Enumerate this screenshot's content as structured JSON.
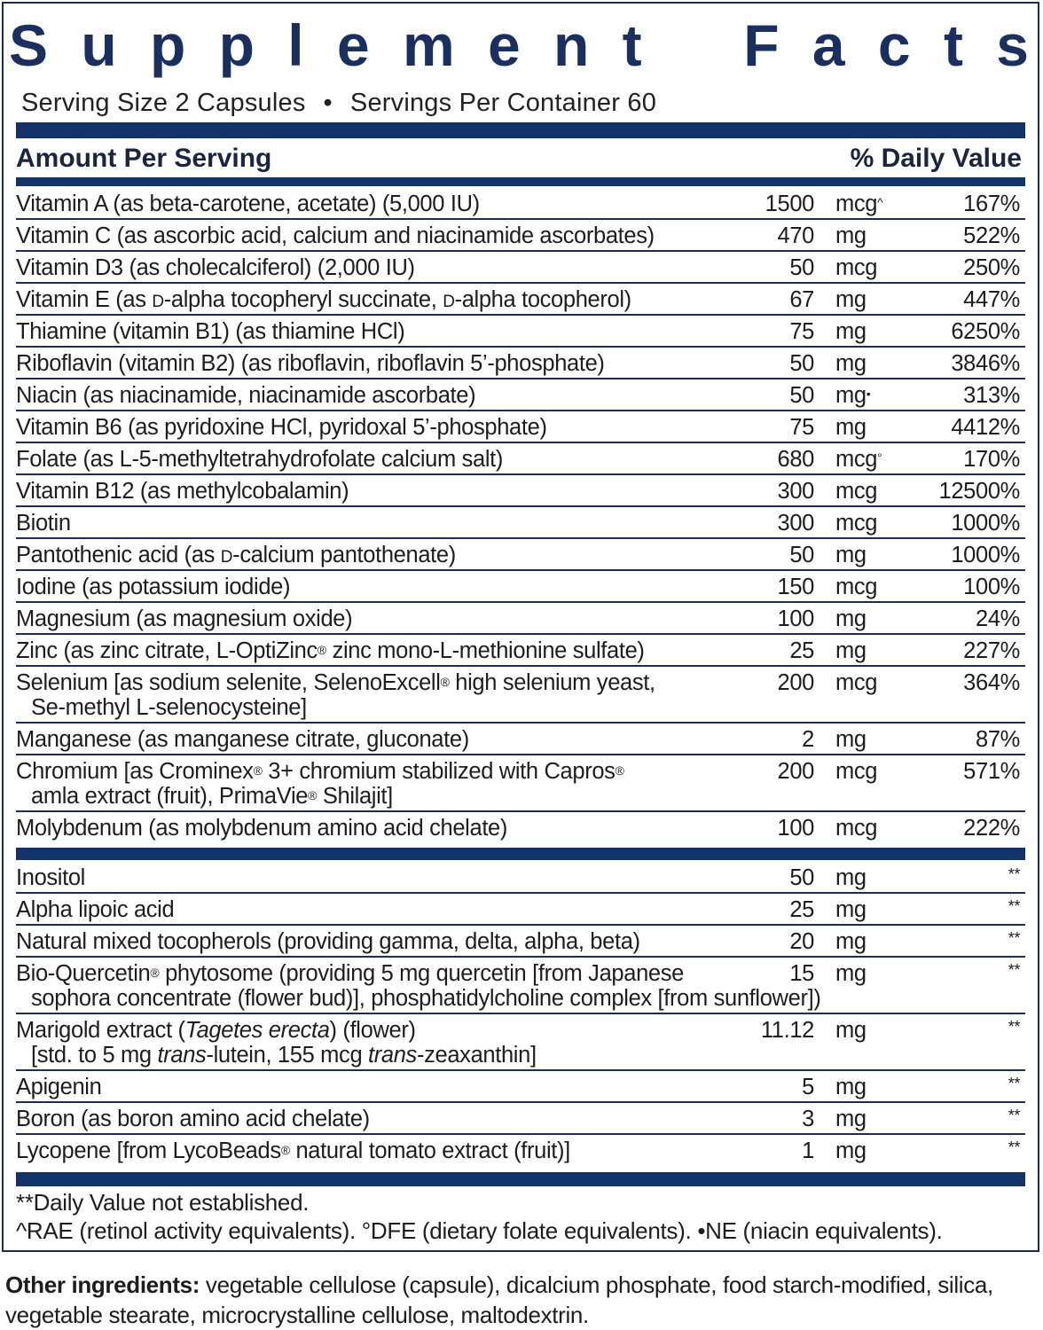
{
  "title": "Supplement Facts",
  "serving": {
    "size": "Serving Size 2 Capsules",
    "separator": "•",
    "per_container": "Servings Per Container 60"
  },
  "header": {
    "amount": "Amount Per Serving",
    "daily_value": "% Daily Value"
  },
  "colors": {
    "accent": "#15336b",
    "title": "#1a2f5e"
  },
  "nutrients": [
    {
      "name": [
        [
          {
            "t": "Vitamin A (as beta-carotene, acetate) (5,000 IU)"
          }
        ]
      ],
      "amount": "1500",
      "unit": "mcg",
      "mark": "^",
      "dv": "167%"
    },
    {
      "name": [
        [
          {
            "t": "Vitamin C (as ascorbic acid, calcium and niacinamide ascorbates)"
          }
        ]
      ],
      "amount": "470",
      "unit": "mg",
      "dv": "522%"
    },
    {
      "name": [
        [
          {
            "t": "Vitamin D3 (as cholecalciferol) (2,000 IU)"
          }
        ]
      ],
      "amount": "50",
      "unit": "mcg",
      "dv": "250%"
    },
    {
      "name": [
        [
          {
            "t": "Vitamin E (as "
          },
          {
            "t": "D",
            "sc": true
          },
          {
            "t": "-alpha tocopheryl succinate, "
          },
          {
            "t": "D",
            "sc": true
          },
          {
            "t": "-alpha tocopherol)"
          }
        ]
      ],
      "amount": "67",
      "unit": "mg",
      "dv": "447%"
    },
    {
      "name": [
        [
          {
            "t": "Thiamine (vitamin B1) (as thiamine HCl)"
          }
        ]
      ],
      "amount": "75",
      "unit": "mg",
      "dv": "6250%"
    },
    {
      "name": [
        [
          {
            "t": "Riboflavin (vitamin B2) (as riboflavin, riboflavin 5’-phosphate)"
          }
        ]
      ],
      "amount": "50",
      "unit": "mg",
      "dv": "3846%"
    },
    {
      "name": [
        [
          {
            "t": "Niacin (as niacinamide, niacinamide ascorbate)"
          }
        ]
      ],
      "amount": "50",
      "unit": "mg",
      "mark": "•",
      "dv": "313%"
    },
    {
      "name": [
        [
          {
            "t": "Vitamin B6 (as pyridoxine HCl, pyridoxal 5’-phosphate)"
          }
        ]
      ],
      "amount": "75",
      "unit": "mg",
      "dv": "4412%"
    },
    {
      "name": [
        [
          {
            "t": "Folate (as L-5-methyltetrahydrofolate calcium salt)"
          }
        ]
      ],
      "amount": "680",
      "unit": "mcg",
      "mark": "°",
      "dv": "170%"
    },
    {
      "name": [
        [
          {
            "t": "Vitamin B12 (as methylcobalamin)"
          }
        ]
      ],
      "amount": "300",
      "unit": "mcg",
      "dv": "12500%"
    },
    {
      "name": [
        [
          {
            "t": "Biotin"
          }
        ]
      ],
      "amount": "300",
      "unit": "mcg",
      "dv": "1000%"
    },
    {
      "name": [
        [
          {
            "t": "Pantothenic acid (as "
          },
          {
            "t": "D",
            "sc": true
          },
          {
            "t": "-calcium pantothenate)"
          }
        ]
      ],
      "amount": "50",
      "unit": "mg",
      "dv": "1000%"
    },
    {
      "name": [
        [
          {
            "t": "Iodine (as potassium iodide)"
          }
        ]
      ],
      "amount": "150",
      "unit": "mcg",
      "dv": "100%"
    },
    {
      "name": [
        [
          {
            "t": "Magnesium (as magnesium oxide)"
          }
        ]
      ],
      "amount": "100",
      "unit": "mg",
      "dv": "24%"
    },
    {
      "name": [
        [
          {
            "t": "Zinc (as zinc citrate, L-OptiZinc"
          },
          {
            "t": "®",
            "reg": true
          },
          {
            "t": " zinc mono-L-methionine sulfate)"
          }
        ]
      ],
      "amount": "25",
      "unit": "mg",
      "dv": "227%"
    },
    {
      "name": [
        [
          {
            "t": "Selenium [as sodium selenite, SelenoExcell"
          },
          {
            "t": "®",
            "reg": true
          },
          {
            "t": " high selenium yeast,"
          }
        ],
        [
          {
            "t": "Se-methyl L-selenocysteine]"
          }
        ]
      ],
      "amount": "200",
      "unit": "mcg",
      "dv": "364%"
    },
    {
      "name": [
        [
          {
            "t": "Manganese (as manganese citrate, gluconate)"
          }
        ]
      ],
      "amount": "2",
      "unit": "mg",
      "dv": "87%"
    },
    {
      "name": [
        [
          {
            "t": "Chromium [as Crominex"
          },
          {
            "t": "®",
            "reg": true
          },
          {
            "t": " 3+ chromium stabilized with Capros"
          },
          {
            "t": "®",
            "reg": true
          }
        ],
        [
          {
            "t": "amla extract (fruit), PrimaVie"
          },
          {
            "t": "®",
            "reg": true
          },
          {
            "t": " Shilajit]"
          }
        ]
      ],
      "amount": "200",
      "unit": "mcg",
      "dv": "571%"
    },
    {
      "name": [
        [
          {
            "t": "Molybdenum (as molybdenum amino acid chelate)"
          }
        ]
      ],
      "amount": "100",
      "unit": "mcg",
      "dv": "222%"
    }
  ],
  "others": [
    {
      "name": [
        [
          {
            "t": "Inositol"
          }
        ]
      ],
      "amount": "50",
      "unit": "mg",
      "dv": "**"
    },
    {
      "name": [
        [
          {
            "t": "Alpha lipoic acid"
          }
        ]
      ],
      "amount": "25",
      "unit": "mg",
      "dv": "**"
    },
    {
      "name": [
        [
          {
            "t": "Natural mixed tocopherols (providing gamma, delta, alpha, beta)"
          }
        ]
      ],
      "amount": "20",
      "unit": "mg",
      "dv": "**"
    },
    {
      "name": [
        [
          {
            "t": "Bio-Quercetin"
          },
          {
            "t": "®",
            "reg": true
          },
          {
            "t": " phytosome (providing 5 mg quercetin [from Japanese"
          }
        ],
        [
          {
            "t": "sophora concentrate (flower bud)], phosphatidylcholine complex [from sunflower])"
          }
        ]
      ],
      "amount": "15",
      "unit": "mg",
      "dv": "**"
    },
    {
      "name": [
        [
          {
            "t": "Marigold extract ("
          },
          {
            "t": "Tagetes erecta",
            "i": true
          },
          {
            "t": ") (flower)"
          }
        ],
        [
          {
            "t": "[std. to 5 mg "
          },
          {
            "t": "trans",
            "i": true
          },
          {
            "t": "-lutein, 155 mcg "
          },
          {
            "t": "trans",
            "i": true
          },
          {
            "t": "-zeaxanthin]"
          }
        ]
      ],
      "amount": "11.12",
      "unit": "mg",
      "dv": "**"
    },
    {
      "name": [
        [
          {
            "t": "Apigenin"
          }
        ]
      ],
      "amount": "5",
      "unit": "mg",
      "dv": "**"
    },
    {
      "name": [
        [
          {
            "t": "Boron (as boron amino acid chelate)"
          }
        ]
      ],
      "amount": "3",
      "unit": "mg",
      "dv": "**"
    },
    {
      "name": [
        [
          {
            "t": "Lycopene [from LycoBeads"
          },
          {
            "t": "®",
            "reg": true
          },
          {
            "t": " natural tomato extract (fruit)]"
          }
        ]
      ],
      "amount": "1",
      "unit": "mg",
      "dv": "**"
    }
  ],
  "footnotes": {
    "line1": "**Daily Value not established.",
    "line2": "^RAE (retinol activity equivalents). °DFE (dietary folate equivalents). •NE (niacin equivalents)."
  },
  "other_ingredients": {
    "label": "Other ingredients:",
    "text": " vegetable cellulose (capsule), dicalcium phosphate, food starch-modified, silica, vegetable stearate, microcrystalline cellulose, maltodextrin."
  }
}
